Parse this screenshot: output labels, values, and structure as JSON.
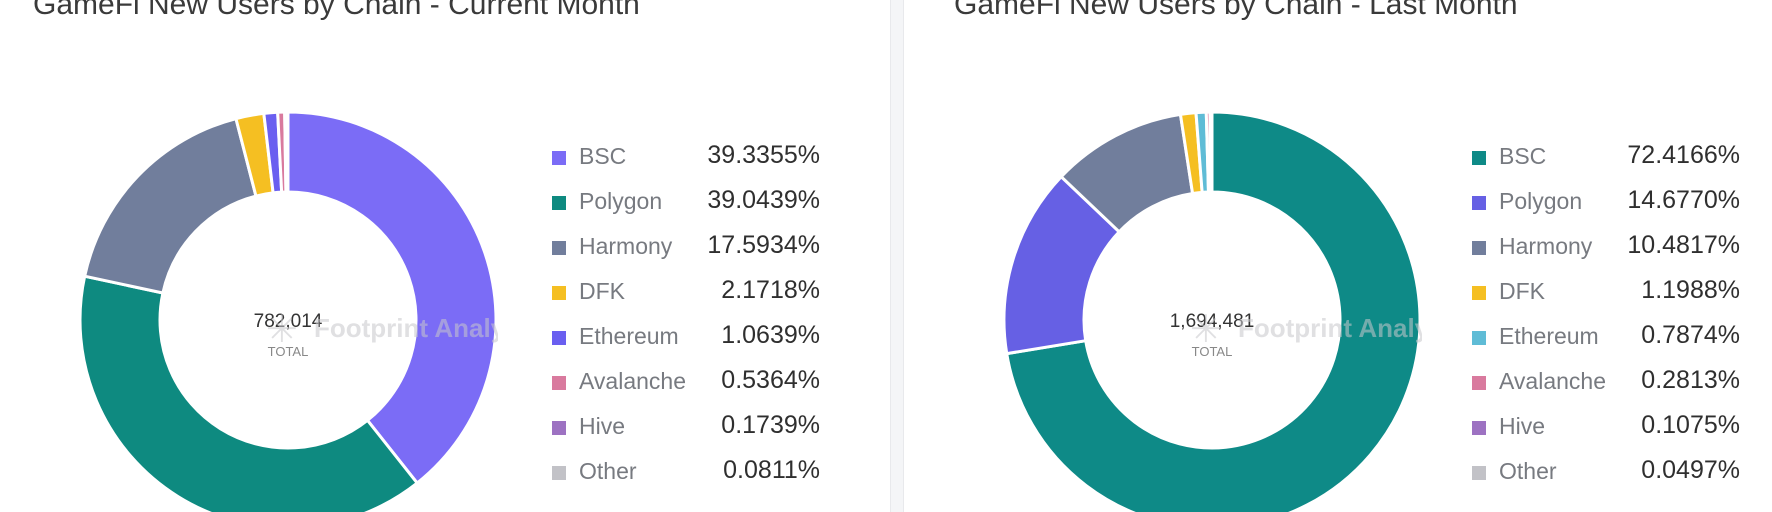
{
  "chart_data": [
    {
      "type": "pie",
      "title": "GameFi New Users by Chain - Current Month",
      "total": "782,014",
      "total_label": "TOTAL",
      "categories": [
        "BSC",
        "Polygon",
        "Harmony",
        "DFK",
        "Ethereum",
        "Avalanche",
        "Hive",
        "Other"
      ],
      "values": [
        39.3355,
        39.0439,
        17.5934,
        2.1718,
        1.0639,
        0.5364,
        0.1739,
        0.0811
      ],
      "value_labels": [
        "39.3355%",
        "39.0439%",
        "17.5934%",
        "2.1718%",
        "1.0639%",
        "0.5364%",
        "0.1739%",
        "0.0811%"
      ],
      "colors": [
        "#7b6cf6",
        "#0e8a80",
        "#717e9c",
        "#f5bf22",
        "#6a5ff0",
        "#d97a9e",
        "#9d72c2",
        "#c2c2c7"
      ],
      "legend_position": "right"
    },
    {
      "type": "pie",
      "title": "GameFi New Users by Chain - Last Month",
      "total": "1,694,481",
      "total_label": "TOTAL",
      "categories": [
        "BSC",
        "Polygon",
        "Harmony",
        "DFK",
        "Ethereum",
        "Avalanche",
        "Hive",
        "Other"
      ],
      "values": [
        72.4166,
        14.677,
        10.4817,
        1.1988,
        0.7874,
        0.2813,
        0.1075,
        0.0497
      ],
      "value_labels": [
        "72.4166%",
        "14.6770%",
        "10.4817%",
        "1.1988%",
        "0.7874%",
        "0.2813%",
        "0.1075%",
        "0.0497%"
      ],
      "colors": [
        "#0e8a87",
        "#6660e4",
        "#717e9c",
        "#f5bf22",
        "#5fbcd6",
        "#d97a9e",
        "#9d72c2",
        "#c2c2c7"
      ],
      "legend_position": "right"
    }
  ],
  "watermark": {
    "text": "Footprint Analytics",
    "color": "#c8c8cc"
  }
}
